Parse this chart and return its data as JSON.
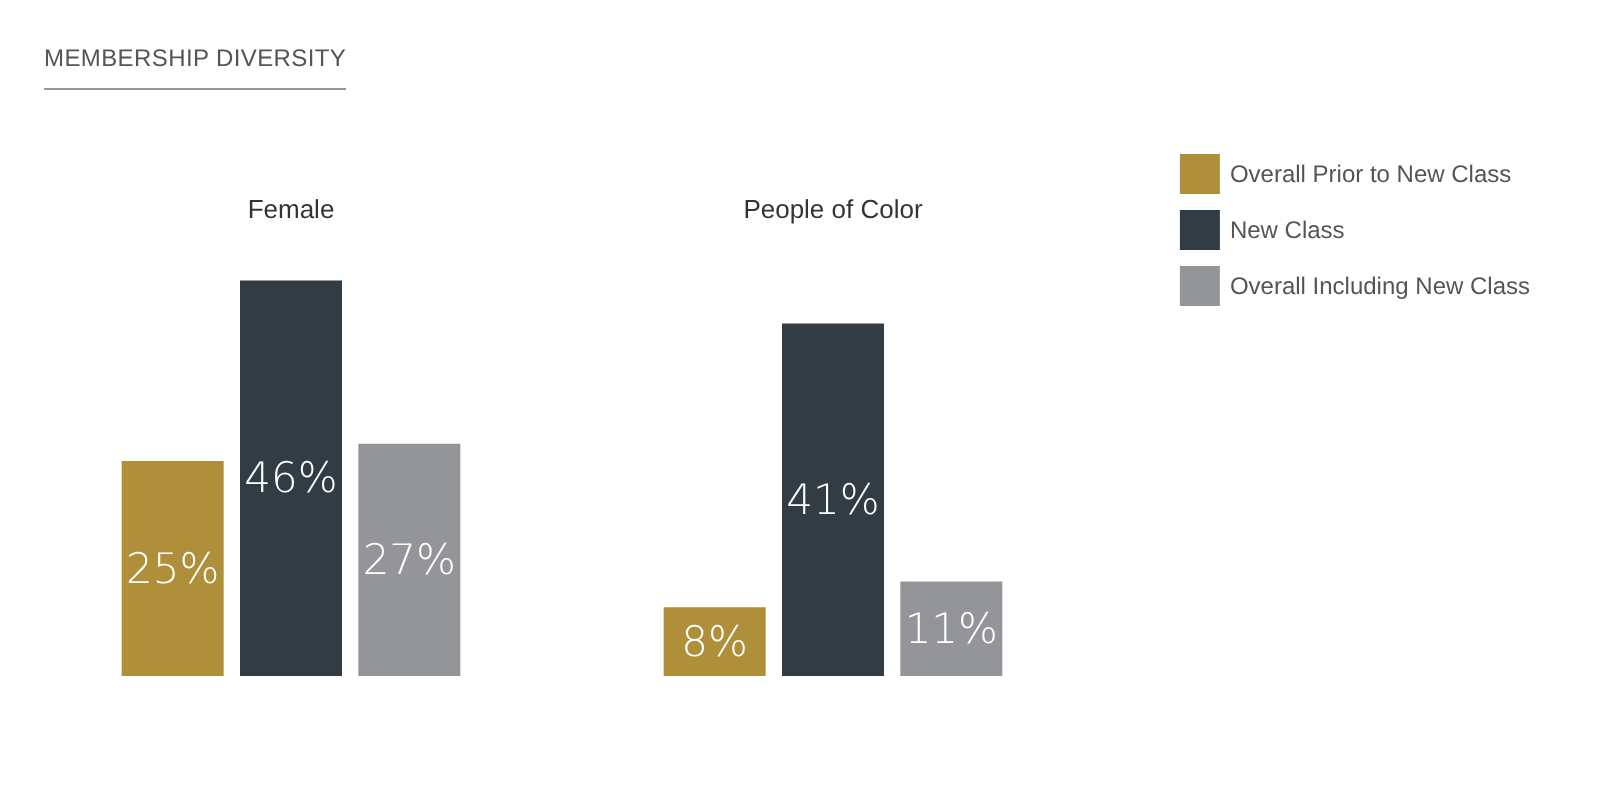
{
  "chart_data": {
    "type": "bar",
    "title": "MEMBERSHIP DIVERSITY",
    "categories": [
      "Female",
      "People of Color"
    ],
    "series": [
      {
        "name": "Overall Prior to New Class",
        "color": "#b08f3a",
        "values": [
          25,
          8
        ],
        "value_labels": [
          "25%",
          "8%"
        ]
      },
      {
        "name": "New Class",
        "color": "#323c44",
        "values": [
          46,
          41
        ],
        "value_labels": [
          "46%",
          "41%"
        ]
      },
      {
        "name": "Overall Including New Class",
        "color": "#939598",
        "values": [
          27,
          11
        ],
        "value_labels": [
          "27%",
          "11%"
        ]
      }
    ],
    "legend": "top right",
    "grid": false
  }
}
